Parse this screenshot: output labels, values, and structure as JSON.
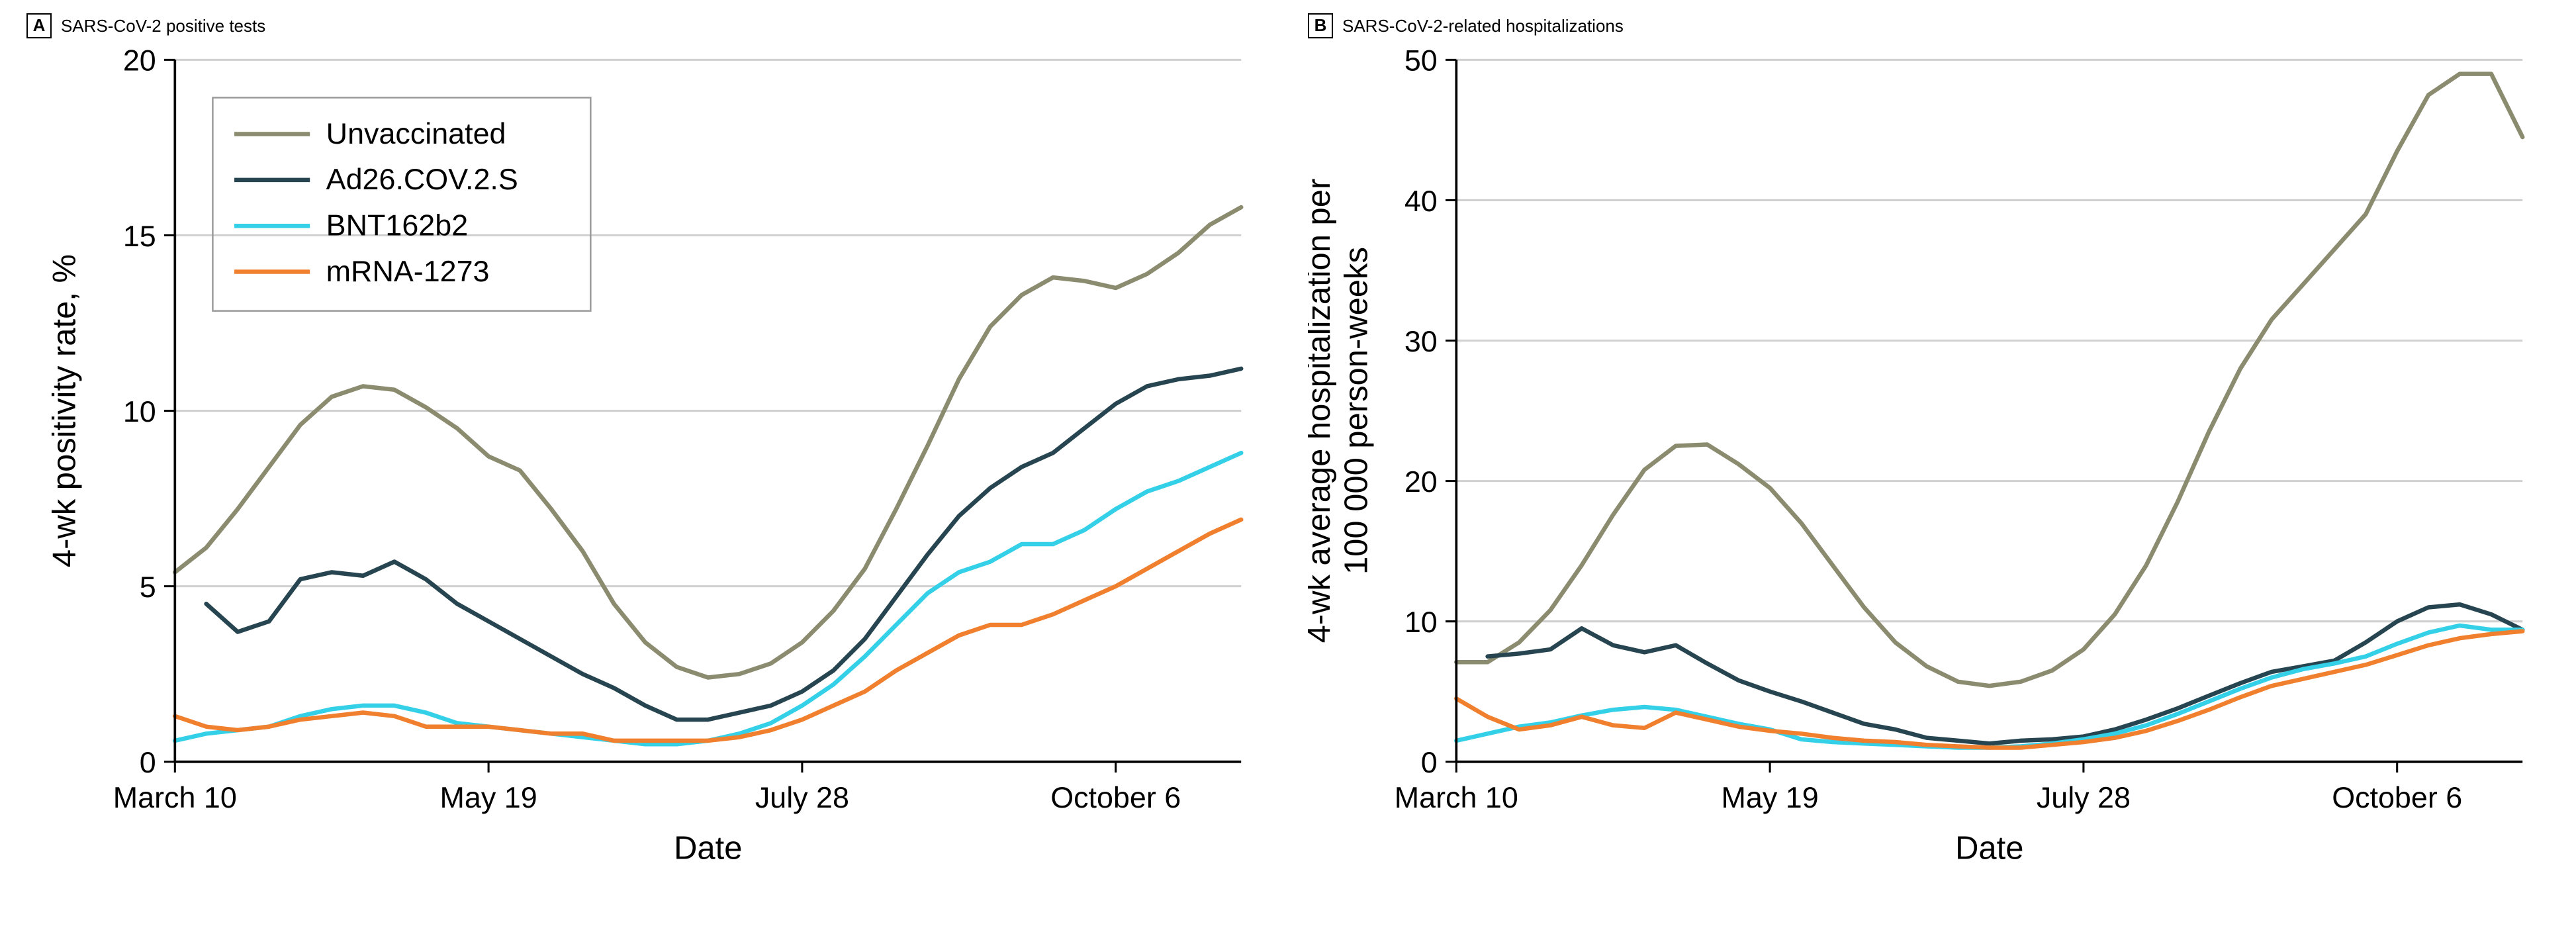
{
  "global": {
    "background_color": "#ffffff",
    "grid_color": "#d0d0d0",
    "axis_color": "#000000",
    "text_color": "#000000",
    "series_colors": {
      "unvaccinated": "#8b8b6f",
      "ad26": "#274550",
      "bnt": "#33d0e8",
      "mrna": "#f07f2e"
    },
    "font_family": "Arial",
    "tick_fontsize": 22,
    "axis_label_fontsize": 24,
    "title_fontsize": 26,
    "line_width": 3.2,
    "x_axis": {
      "label": "Date",
      "tick_indices": [
        0,
        10,
        20,
        30
      ],
      "tick_labels": [
        "March 10",
        "May 19",
        "July 28",
        "October 6"
      ],
      "n_points": 35
    }
  },
  "legend": {
    "items": [
      {
        "key": "unvaccinated",
        "label": "Unvaccinated"
      },
      {
        "key": "ad26",
        "label": "Ad26.COV.2.S"
      },
      {
        "key": "bnt",
        "label": "BNT162b2"
      },
      {
        "key": "mrna",
        "label": "mRNA-1273"
      }
    ]
  },
  "panelA": {
    "letter": "A",
    "title": "SARS-CoV-2 positive tests",
    "type": "line",
    "ylabel": "4-wk positivity rate, %",
    "ylim": [
      0,
      20
    ],
    "ytick_step": 5,
    "show_legend": true,
    "series": {
      "unvaccinated": [
        5.4,
        6.1,
        7.2,
        8.4,
        9.6,
        10.4,
        10.7,
        10.6,
        10.1,
        9.5,
        8.7,
        8.3,
        7.2,
        6.0,
        4.5,
        3.4,
        2.7,
        2.4,
        2.5,
        2.8,
        3.4,
        4.3,
        5.5,
        7.2,
        9.0,
        10.9,
        12.4,
        13.3,
        13.8,
        13.7,
        13.5,
        13.9,
        14.5,
        15.3,
        15.8
      ],
      "ad26": [
        null,
        4.5,
        3.7,
        4.0,
        5.2,
        5.4,
        5.3,
        5.7,
        5.2,
        4.5,
        4.0,
        3.5,
        3.0,
        2.5,
        2.1,
        1.6,
        1.2,
        1.2,
        1.4,
        1.6,
        2.0,
        2.6,
        3.5,
        4.7,
        5.9,
        7.0,
        7.8,
        8.4,
        8.8,
        9.5,
        10.2,
        10.7,
        10.9,
        11.0,
        11.2
      ],
      "bnt": [
        0.6,
        0.8,
        0.9,
        1.0,
        1.3,
        1.5,
        1.6,
        1.6,
        1.4,
        1.1,
        1.0,
        0.9,
        0.8,
        0.7,
        0.6,
        0.5,
        0.5,
        0.6,
        0.8,
        1.1,
        1.6,
        2.2,
        3.0,
        3.9,
        4.8,
        5.4,
        5.7,
        6.2,
        6.2,
        6.6,
        7.2,
        7.7,
        8.0,
        8.4,
        8.8
      ],
      "mrna": [
        1.3,
        1.0,
        0.9,
        1.0,
        1.2,
        1.3,
        1.4,
        1.3,
        1.0,
        1.0,
        1.0,
        0.9,
        0.8,
        0.8,
        0.6,
        0.6,
        0.6,
        0.6,
        0.7,
        0.9,
        1.2,
        1.6,
        2.0,
        2.6,
        3.1,
        3.6,
        3.9,
        3.9,
        4.2,
        4.6,
        5.0,
        5.5,
        6.0,
        6.5,
        6.9
      ]
    }
  },
  "panelB": {
    "letter": "B",
    "title": "SARS-CoV-2-related hospitalizations",
    "type": "line",
    "ylabel": "4-wk average hospitalization per\n100 000 person-weeks",
    "ylim": [
      0,
      50
    ],
    "ytick_step": 10,
    "show_legend": false,
    "series": {
      "unvaccinated": [
        7.1,
        7.1,
        8.5,
        10.8,
        14.0,
        17.6,
        20.8,
        22.5,
        22.6,
        21.2,
        19.5,
        17.0,
        14.0,
        11.0,
        8.5,
        6.8,
        5.7,
        5.4,
        5.7,
        6.5,
        8.0,
        10.5,
        14.0,
        18.5,
        23.5,
        28.0,
        31.5,
        34.0,
        36.5,
        39.0,
        43.5,
        47.5,
        49.0,
        49.0,
        44.5
      ],
      "ad26": [
        null,
        7.5,
        7.7,
        8.0,
        9.5,
        8.3,
        7.8,
        8.3,
        7.0,
        5.8,
        5.0,
        4.3,
        3.5,
        2.7,
        2.3,
        1.7,
        1.5,
        1.3,
        1.5,
        1.6,
        1.8,
        2.3,
        3.0,
        3.8,
        4.7,
        5.6,
        6.4,
        6.8,
        7.2,
        8.5,
        10.0,
        11.0,
        11.2,
        10.5,
        9.4
      ],
      "bnt": [
        1.5,
        2.0,
        2.5,
        2.8,
        3.3,
        3.7,
        3.9,
        3.7,
        3.2,
        2.7,
        2.3,
        1.6,
        1.4,
        1.3,
        1.2,
        1.1,
        1.0,
        1.0,
        1.1,
        1.3,
        1.6,
        2.0,
        2.6,
        3.4,
        4.3,
        5.2,
        6.0,
        6.6,
        7.0,
        7.5,
        8.4,
        9.2,
        9.7,
        9.4,
        9.4
      ],
      "mrna": [
        4.5,
        3.2,
        2.3,
        2.6,
        3.2,
        2.6,
        2.4,
        3.5,
        3.0,
        2.5,
        2.2,
        2.0,
        1.7,
        1.5,
        1.4,
        1.2,
        1.1,
        1.0,
        1.0,
        1.2,
        1.4,
        1.7,
        2.2,
        2.9,
        3.7,
        4.6,
        5.4,
        5.9,
        6.4,
        6.9,
        7.6,
        8.3,
        8.8,
        9.1,
        9.3
      ]
    }
  }
}
